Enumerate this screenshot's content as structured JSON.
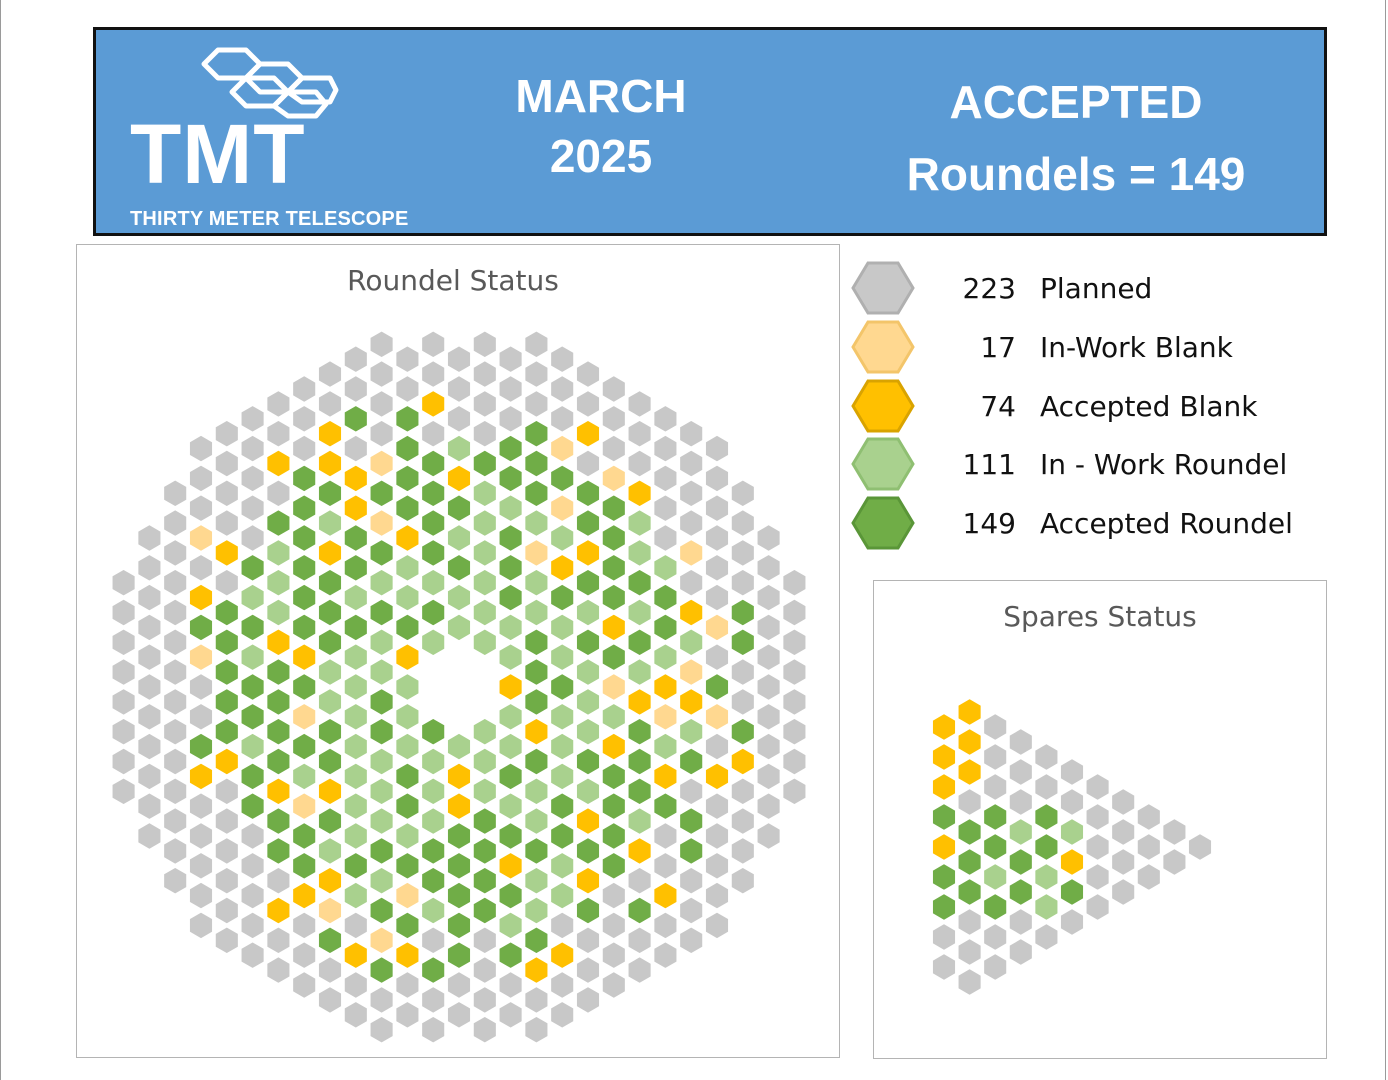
{
  "header": {
    "logo_text": "TMT",
    "org_name": "THIRTY METER TELESCOPE",
    "month": "MARCH",
    "year": "2025",
    "status_heading": "ACCEPTED",
    "status_value": "Roundels = 149"
  },
  "roundel_panel": {
    "title": "Roundel Status"
  },
  "spares_panel": {
    "title": "Spares Status"
  },
  "legend": [
    {
      "count": "223",
      "label": "Planned",
      "color": "#c8c8c8",
      "stroke": "#b0b0b0",
      "status": "planned"
    },
    {
      "count": "17",
      "label": "In-Work Blank",
      "color": "#ffd890",
      "stroke": "#f3c56a",
      "status": "in-work-blank"
    },
    {
      "count": "74",
      "label": "Accepted Blank",
      "color": "#ffc000",
      "stroke": "#d9a300",
      "status": "accepted-blank"
    },
    {
      "count": "111",
      "label": "In - Work Roundel",
      "color": "#a9d18e",
      "stroke": "#8fbf72",
      "status": "in-work-roundel"
    },
    {
      "count": "149",
      "label": "Accepted Roundel",
      "color": "#70ad47",
      "stroke": "#5a9638",
      "status": "accepted-roundel"
    }
  ]
}
